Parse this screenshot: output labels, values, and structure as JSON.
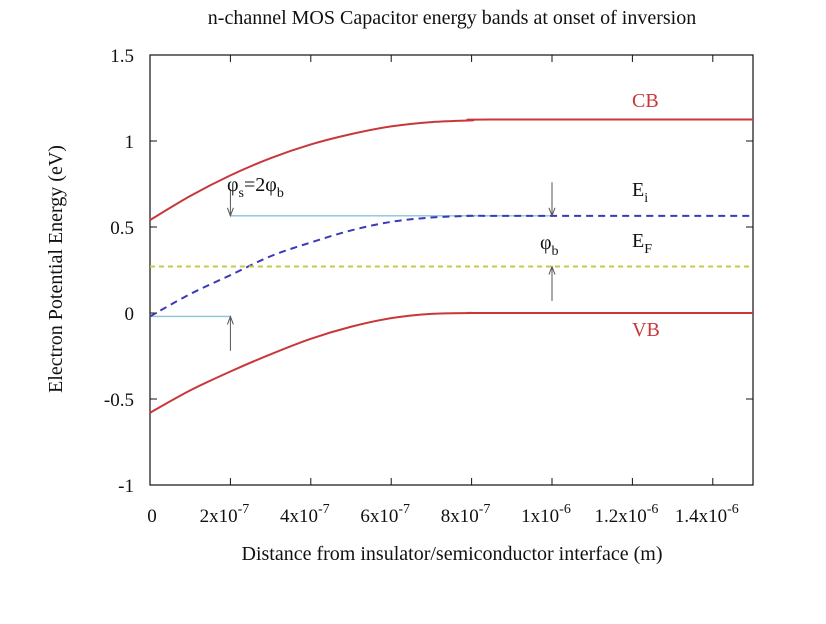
{
  "chart_data": {
    "type": "line",
    "title": "n-channel MOS Capacitor energy bands at onset of inversion",
    "xlabel": "Distance from insulator/semiconductor interface (m)",
    "ylabel": "Electron Potential Energy (eV)",
    "xlim": [
      0,
      1.5e-06
    ],
    "ylim": [
      -1,
      1.5
    ],
    "grid": false,
    "x_ticks": [
      {
        "value": 0,
        "mant": "0",
        "exp": ""
      },
      {
        "value": 2e-07,
        "mant": "2x10",
        "exp": "-7"
      },
      {
        "value": 4e-07,
        "mant": "4x10",
        "exp": "-7"
      },
      {
        "value": 6e-07,
        "mant": "6x10",
        "exp": "-7"
      },
      {
        "value": 8e-07,
        "mant": "8x10",
        "exp": "-7"
      },
      {
        "value": 1e-06,
        "mant": "1x10",
        "exp": "-6"
      },
      {
        "value": 1.2e-06,
        "mant": "1.2x10",
        "exp": "-6"
      },
      {
        "value": 1.4e-06,
        "mant": "1.4x10",
        "exp": "-6"
      }
    ],
    "y_ticks": [
      {
        "value": 1.5,
        "label": "1.5"
      },
      {
        "value": 1,
        "label": "1"
      },
      {
        "value": 0.5,
        "label": "0.5"
      },
      {
        "value": 0,
        "label": "0"
      },
      {
        "value": -0.5,
        "label": "-0.5"
      },
      {
        "value": -1,
        "label": "-1"
      }
    ],
    "series": [
      {
        "name": "CB",
        "color": "#c8383a",
        "style": "solid",
        "x": [
          0,
          1e-07,
          2e-07,
          3e-07,
          4e-07,
          5e-07,
          6e-07,
          7e-07,
          8e-07,
          8.5e-07,
          1.5e-06
        ],
        "y": [
          0.54,
          0.68,
          0.8,
          0.9,
          0.98,
          1.04,
          1.085,
          1.11,
          1.12,
          1.125,
          1.125
        ]
      },
      {
        "name": "Ei",
        "color": "#3a3ab8",
        "style": "dashed",
        "x": [
          0,
          1e-07,
          2e-07,
          3e-07,
          4e-07,
          5e-07,
          6e-07,
          7e-07,
          8e-07,
          8.5e-07,
          1.5e-06
        ],
        "y": [
          -0.02,
          0.11,
          0.22,
          0.33,
          0.41,
          0.48,
          0.53,
          0.555,
          0.565,
          0.565,
          0.565
        ]
      },
      {
        "name": "EF",
        "color": "#c8c84a",
        "style": "dashed",
        "x": [
          0,
          1.5e-06
        ],
        "y": [
          0.27,
          0.27
        ]
      },
      {
        "name": "VB",
        "color": "#c8383a",
        "style": "solid",
        "x": [
          0,
          1e-07,
          2e-07,
          3e-07,
          4e-07,
          5e-07,
          6e-07,
          7e-07,
          8e-07,
          8.5e-07,
          1.5e-06
        ],
        "y": [
          -0.58,
          -0.45,
          -0.34,
          -0.24,
          -0.15,
          -0.08,
          -0.03,
          -0.005,
          0,
          0,
          0
        ]
      }
    ],
    "reference_lines": [
      {
        "name": "surface-ref",
        "color": "#8ac4d8",
        "x": [
          0,
          2e-07
        ],
        "y": [
          -0.02,
          -0.02
        ]
      },
      {
        "name": "bulk-ref",
        "color": "#8ac4d8",
        "x": [
          2e-07,
          1e-06
        ],
        "y": [
          0.565,
          0.565
        ]
      }
    ],
    "annotations": [
      {
        "name": "phi-s-arrow-top",
        "x": 2e-07,
        "y_from": 0.72,
        "y_to": 0.565
      },
      {
        "name": "phi-s-arrow-bottom",
        "x": 2e-07,
        "y_from": -0.22,
        "y_to": -0.02
      },
      {
        "name": "phi-b-arrow-top",
        "x": 1e-06,
        "y_from": 0.76,
        "y_to": 0.565
      },
      {
        "name": "phi-b-arrow-bottom",
        "x": 1e-06,
        "y_from": 0.07,
        "y_to": 0.27
      }
    ],
    "labels": {
      "cb": "CB",
      "vb": "VB",
      "ei_main": "E",
      "ei_sub": "i",
      "ef_main": "E",
      "ef_sub": "F",
      "phi_s_a": "φ",
      "phi_s_a_sub": "s",
      "phi_s_b": "=2φ",
      "phi_s_b_sub": "b",
      "phi_b": "φ",
      "phi_b_sub": "b"
    }
  }
}
